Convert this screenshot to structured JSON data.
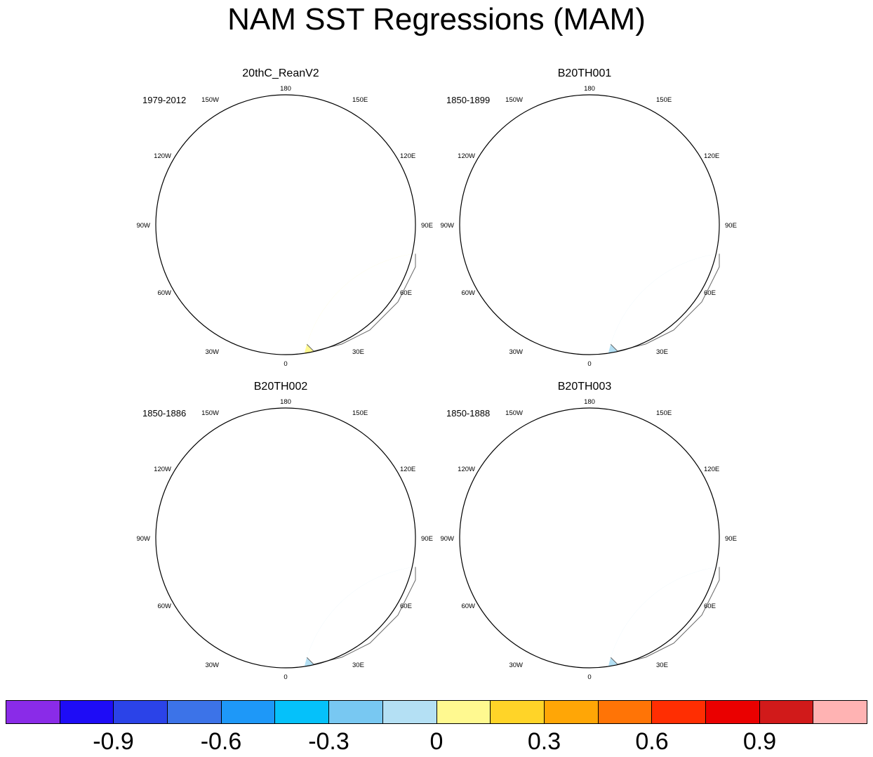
{
  "title": "NAM SST Regressions (MAM)",
  "longitude_labels": {
    "top": "180",
    "bottom": "0",
    "e30": "30E",
    "e60": "60E",
    "e90": "90E",
    "e120": "120E",
    "e150": "150E",
    "w30": "30W",
    "w60": "60W",
    "w90": "90W",
    "w120": "120W",
    "w150": "150W"
  },
  "panels": [
    {
      "title": "20thC_ReanV2",
      "period": "1979-2012"
    },
    {
      "title": "B20TH001",
      "period": "1850-1899"
    },
    {
      "title": "B20TH002",
      "period": "1850-1886"
    },
    {
      "title": "B20TH003",
      "period": "1850-1888"
    }
  ],
  "colorbar": {
    "colors": [
      "#8a2be8",
      "#1e0cf6",
      "#2b43e8",
      "#3c73e8",
      "#1e98f8",
      "#05c1fa",
      "#78c8f2",
      "#b4e0f4",
      "#fff990",
      "#ffd428",
      "#ffa606",
      "#ff7406",
      "#ff2e02",
      "#ea0000",
      "#d11a1a",
      "#ffb3b3"
    ],
    "labels": [
      "-0.9",
      "-0.6",
      "-0.3",
      "0",
      "0.3",
      "0.6",
      "0.9"
    ]
  }
}
